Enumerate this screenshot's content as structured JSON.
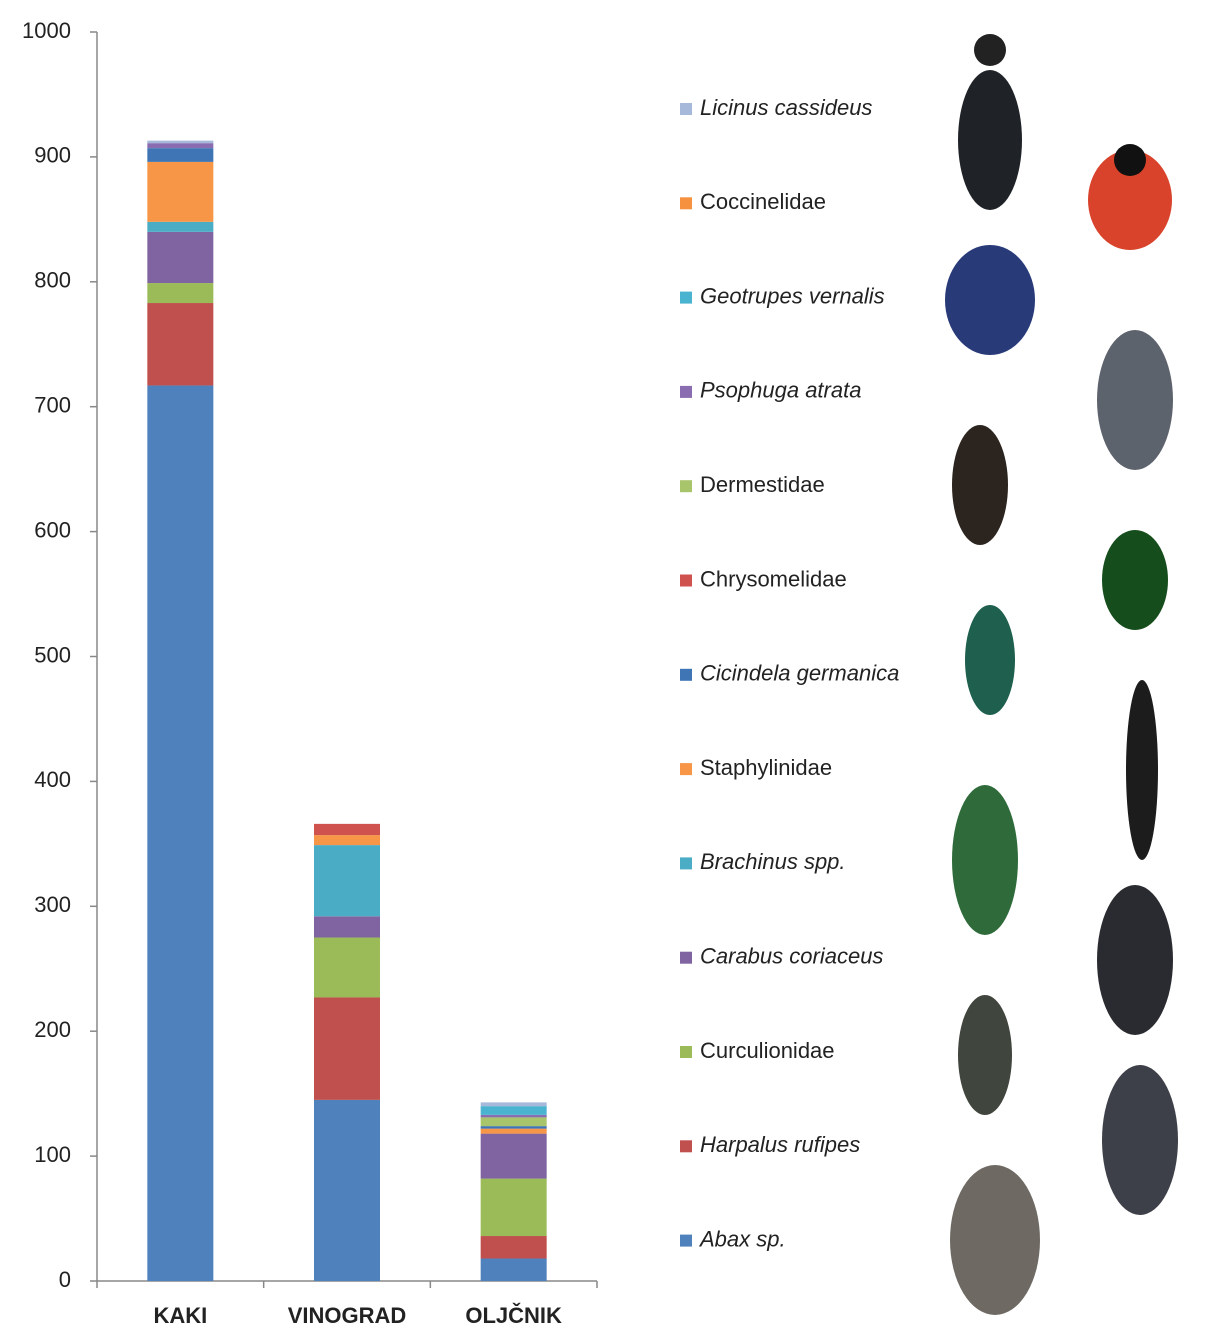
{
  "chart_data": {
    "type": "stacked-bar",
    "categories": [
      "KAKI",
      "VINOGRAD",
      "OLJČNIK"
    ],
    "ylim": [
      0,
      1000
    ],
    "yticks": [
      0,
      100,
      200,
      300,
      400,
      500,
      600,
      700,
      800,
      900,
      1000
    ],
    "grid": false,
    "legend": "right",
    "series": [
      {
        "name": "Abax sp.",
        "italic": true,
        "color": "#4f81bd",
        "values": [
          717,
          145,
          18
        ]
      },
      {
        "name": "Harpalus rufipes",
        "italic": true,
        "color": "#c0504d",
        "values": [
          66,
          82,
          18
        ]
      },
      {
        "name": "Curculionidae",
        "italic": false,
        "color": "#9bbb59",
        "values": [
          16,
          48,
          46
        ]
      },
      {
        "name": "Carabus coriaceus",
        "italic": true,
        "color": "#8064a2",
        "values": [
          41,
          17,
          36
        ]
      },
      {
        "name": "Brachinus spp.",
        "italic": true,
        "color": "#4bacc6",
        "values": [
          8,
          57,
          0
        ]
      },
      {
        "name": "Staphylinidae",
        "italic": false,
        "color": "#f79646",
        "values": [
          48,
          8,
          4
        ]
      },
      {
        "name": "Cicindela germanica",
        "italic": true,
        "color": "#3f75b5",
        "values": [
          11,
          0,
          2
        ]
      },
      {
        "name": "Chrysomelidae",
        "italic": false,
        "color": "#d0524f",
        "values": [
          0,
          9,
          0
        ]
      },
      {
        "name": "Dermestidae",
        "italic": false,
        "color": "#a9c56b",
        "values": [
          0,
          0,
          7
        ]
      },
      {
        "name": "Psophuga atrata",
        "italic": true,
        "color": "#8a6cb0",
        "values": [
          4,
          0,
          2
        ]
      },
      {
        "name": "Geotrupes vernalis",
        "italic": true,
        "color": "#4ab3cf",
        "values": [
          0,
          0,
          7
        ]
      },
      {
        "name": "Coccinelidae",
        "italic": false,
        "color": "#f5913f",
        "values": [
          0,
          0,
          0
        ]
      },
      {
        "name": "Licinus cassideus",
        "italic": true,
        "color": "#a7b9da",
        "values": [
          2,
          0,
          3
        ]
      }
    ]
  }
}
